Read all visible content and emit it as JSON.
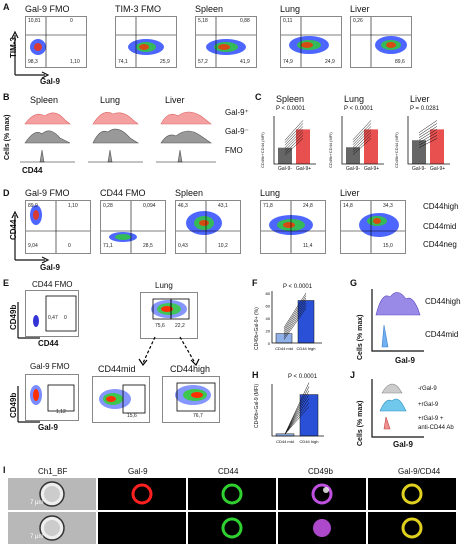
{
  "panelA": {
    "label": "A",
    "titles": [
      "Gal-9 FMO",
      "TIM-3 FMO",
      "Spleen",
      "Lung",
      "Liver"
    ],
    "quads": [
      [
        "10,81",
        "0",
        "98,3",
        "1,10"
      ],
      [
        "",
        "",
        "74,1",
        "25,9"
      ],
      [
        "5,18",
        "0,88",
        "57,2",
        "41,9"
      ],
      [
        "0,11",
        "",
        "74,9",
        "24,9"
      ],
      [
        "0,26",
        "",
        "",
        "89,6"
      ]
    ],
    "ylabel": "TIM-3",
    "xlabel": "Gal-9"
  },
  "panelB": {
    "label": "B",
    "titles": [
      "Spleen",
      "Lung",
      "Liver"
    ],
    "rows": [
      "Gal-9⁺",
      "Gal-9⁻",
      "FMO"
    ],
    "ylabel": "Cells (% max)",
    "xlabel": "CD44"
  },
  "panelC": {
    "label": "C",
    "titles": [
      "Spleen",
      "Lung",
      "Liver"
    ],
    "pvals": [
      "P < 0.0001",
      "P < 0.0001",
      "P = 0.0281"
    ],
    "ylabel": "CD49b+CD44 (MFI)",
    "ticks": [
      "Gal-9-",
      "Gal-9+"
    ],
    "chart_data": [
      {
        "type": "bar",
        "categories": [
          "Gal-9-",
          "Gal-9+"
        ],
        "values": [
          320,
          680
        ],
        "title": "Spleen"
      },
      {
        "type": "bar",
        "categories": [
          "Gal-9-",
          "Gal-9+"
        ],
        "values": [
          300,
          620
        ],
        "title": "Lung"
      },
      {
        "type": "bar",
        "categories": [
          "Gal-9-",
          "Gal-9+"
        ],
        "values": [
          2200,
          3200
        ],
        "title": "Liver"
      }
    ]
  },
  "panelD": {
    "label": "D",
    "titles": [
      "Gal-9 FMO",
      "CD44 FMO",
      "Spleen",
      "Lung",
      "Liver"
    ],
    "quads": [
      [
        "89,9",
        "1,10",
        "9,04",
        "0"
      ],
      [
        "0,28",
        "0,094",
        "71,1",
        "28,5"
      ],
      [
        "46,3",
        "43,1",
        "0,43",
        "10,2"
      ],
      [
        "71,8",
        "24,8",
        "",
        "11,4"
      ],
      [
        "14,8",
        "34,3",
        "",
        "15,0"
      ]
    ],
    "legend": [
      "CD44high",
      "CD44mid",
      "CD44neg"
    ],
    "ylabel": "CD44",
    "xlabel": "Gal-9"
  },
  "panelE": {
    "label": "E",
    "titles": [
      "CD44 FMO",
      "Lung",
      "Gal-9 FMO",
      "CD44mid",
      "CD44high"
    ],
    "values": [
      "0,47",
      "0",
      "75,6",
      "22,2",
      "1,12",
      "15,6",
      "76,7"
    ],
    "ylabel1": "CD49b",
    "xlabel1": "CD44",
    "ylabel2": "CD49b",
    "xlabel2": "Gal-9"
  },
  "panelF": {
    "label": "F",
    "pval": "P < 0.0001",
    "ylabel": "CD49b+Gal-9+ (%)",
    "ticks": [
      "CD44 mid",
      "CD44 high"
    ],
    "yticks": [
      "0",
      "20",
      "40",
      "60",
      "80"
    ],
    "chart_data": {
      "type": "bar",
      "categories": [
        "CD44 mid",
        "CD44 high"
      ],
      "values": [
        15,
        68
      ],
      "ylim": [
        0,
        80
      ]
    }
  },
  "panelG": {
    "label": "G",
    "legend": [
      "CD44high",
      "CD44mid"
    ],
    "ylabel": "Cells (% max)",
    "xlabel": "Gal-9"
  },
  "panelH": {
    "label": "H",
    "pval": "P < 0.0001",
    "ylabel": "CD49b+Gal-9 (MFI)",
    "ticks": [
      "CD44 mid",
      "CD44 high"
    ],
    "chart_data": {
      "type": "bar",
      "categories": [
        "CD44 mid",
        "CD44 high"
      ],
      "values": [
        30,
        580
      ]
    }
  },
  "panelJ": {
    "label": "J",
    "legend": [
      "-rGal-9",
      "+rGal-9",
      "+rGal-9 +",
      "anti-CD44 Ab"
    ],
    "ylabel": "Cells (% max)",
    "xlabel": "Gal-9"
  },
  "panelI": {
    "label": "I",
    "channels": [
      "Ch1_BF",
      "Gal-9",
      "CD44",
      "CD49b",
      "Gal-9/CD44"
    ],
    "scale": "7 μm",
    "colors": [
      "#dcdcdc",
      "#ff2020",
      "#30d030",
      "#c050e0",
      "#e0d020"
    ]
  }
}
